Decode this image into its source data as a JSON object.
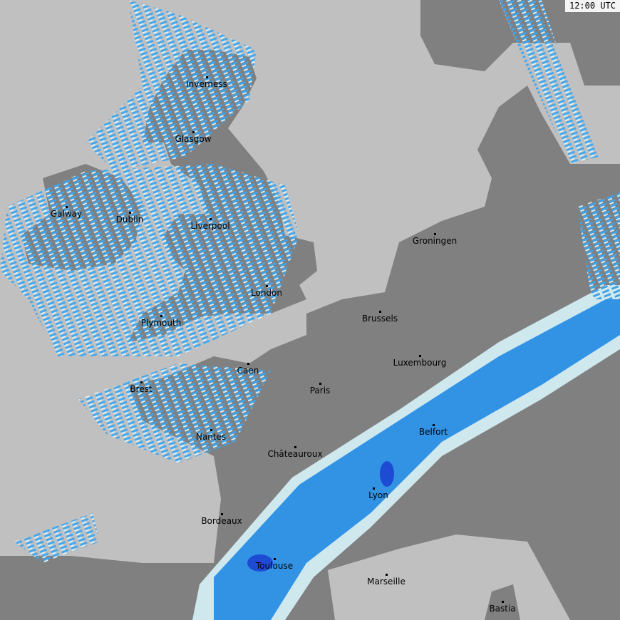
{
  "timestamp": "12:00 UTC",
  "colors": {
    "sea": "#c0c0c0",
    "land": "#808080",
    "precip_light": "#d8f4fb",
    "precip_mid": "#5ab8f0",
    "precip_heavy": "#1e8cf0",
    "precip_intense": "#1446dc"
  },
  "cities": [
    {
      "name": "Inverness"
    },
    {
      "name": "Glasgow"
    },
    {
      "name": "Galway"
    },
    {
      "name": "Dublin"
    },
    {
      "name": "Liverpool"
    },
    {
      "name": "Groningen"
    },
    {
      "name": "London"
    },
    {
      "name": "Brussels"
    },
    {
      "name": "Plymouth"
    },
    {
      "name": "Luxembourg"
    },
    {
      "name": "Caen"
    },
    {
      "name": "Paris"
    },
    {
      "name": "Brest"
    },
    {
      "name": "Belfort"
    },
    {
      "name": "Nantes"
    },
    {
      "name": "Châteauroux"
    },
    {
      "name": "Lyon"
    },
    {
      "name": "Bordeaux"
    },
    {
      "name": "Toulouse"
    },
    {
      "name": "Marseille"
    },
    {
      "name": "Bastia"
    }
  ]
}
